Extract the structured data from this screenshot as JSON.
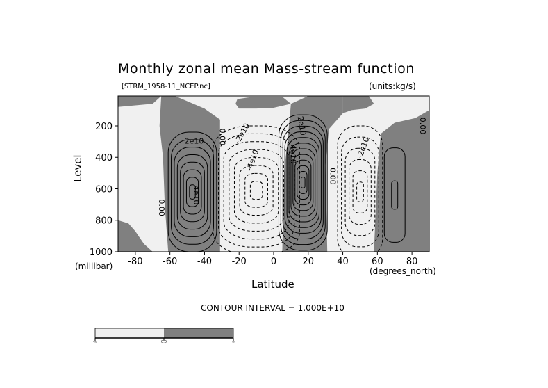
{
  "chart_data": {
    "type": "contour",
    "title": "Monthly zonal mean Mass-stream function",
    "file_label": "[STRM_1958-11_NCEP.nc]",
    "units_label": "(units:kg/s)",
    "xlabel": "Latitude",
    "x_unit_label": "(degrees_north)",
    "ylabel": "Level",
    "y_unit_label": "(millibar)",
    "xlim": [
      -90,
      90
    ],
    "ylim": [
      1000,
      10
    ],
    "y_inverted": true,
    "x_ticks": [
      "-80",
      "-60",
      "-40",
      "-20",
      "0",
      "20",
      "40",
      "60",
      "80"
    ],
    "x_tick_values": [
      -80,
      -60,
      -40,
      -20,
      0,
      20,
      40,
      60,
      80
    ],
    "y_ticks": [
      "200",
      "400",
      "600",
      "800",
      "1000"
    ],
    "y_tick_values": [
      200,
      400,
      600,
      800,
      1000
    ],
    "contour_interval_text": "CONTOUR INTERVAL = 1.000E+10",
    "contour_labels": [
      "2e10",
      "4e10",
      "0.00",
      "-2e10",
      "-4e10",
      "2e10",
      "4e10",
      "0.00",
      "-2e10",
      "0.00",
      "0.00"
    ],
    "cells": [
      {
        "name": "southern-positive-cell",
        "sign": "positive",
        "center_lat": -47,
        "center_level": 600,
        "peak_label": "4e10"
      },
      {
        "name": "southern-negative-cell",
        "sign": "negative",
        "center_lat": -10,
        "center_level": 600,
        "peak_label": "-4e10"
      },
      {
        "name": "hadley-positive-cell",
        "sign": "positive",
        "center_lat": 17,
        "center_level": 550,
        "peak_label": "4e10"
      },
      {
        "name": "ferrel-negative-cell",
        "sign": "negative",
        "center_lat": 50,
        "center_level": 600,
        "peak_label": "-2e10"
      },
      {
        "name": "polar-positive-cell",
        "sign": "positive",
        "center_lat": 70,
        "center_level": 600,
        "peak_label": "0.00"
      }
    ],
    "shading": {
      "negative_color": "#f0f0f0",
      "positive_color": "#808080"
    },
    "colorbar": {
      "labels": [
        "-∞",
        "0.0",
        "∞"
      ]
    }
  }
}
